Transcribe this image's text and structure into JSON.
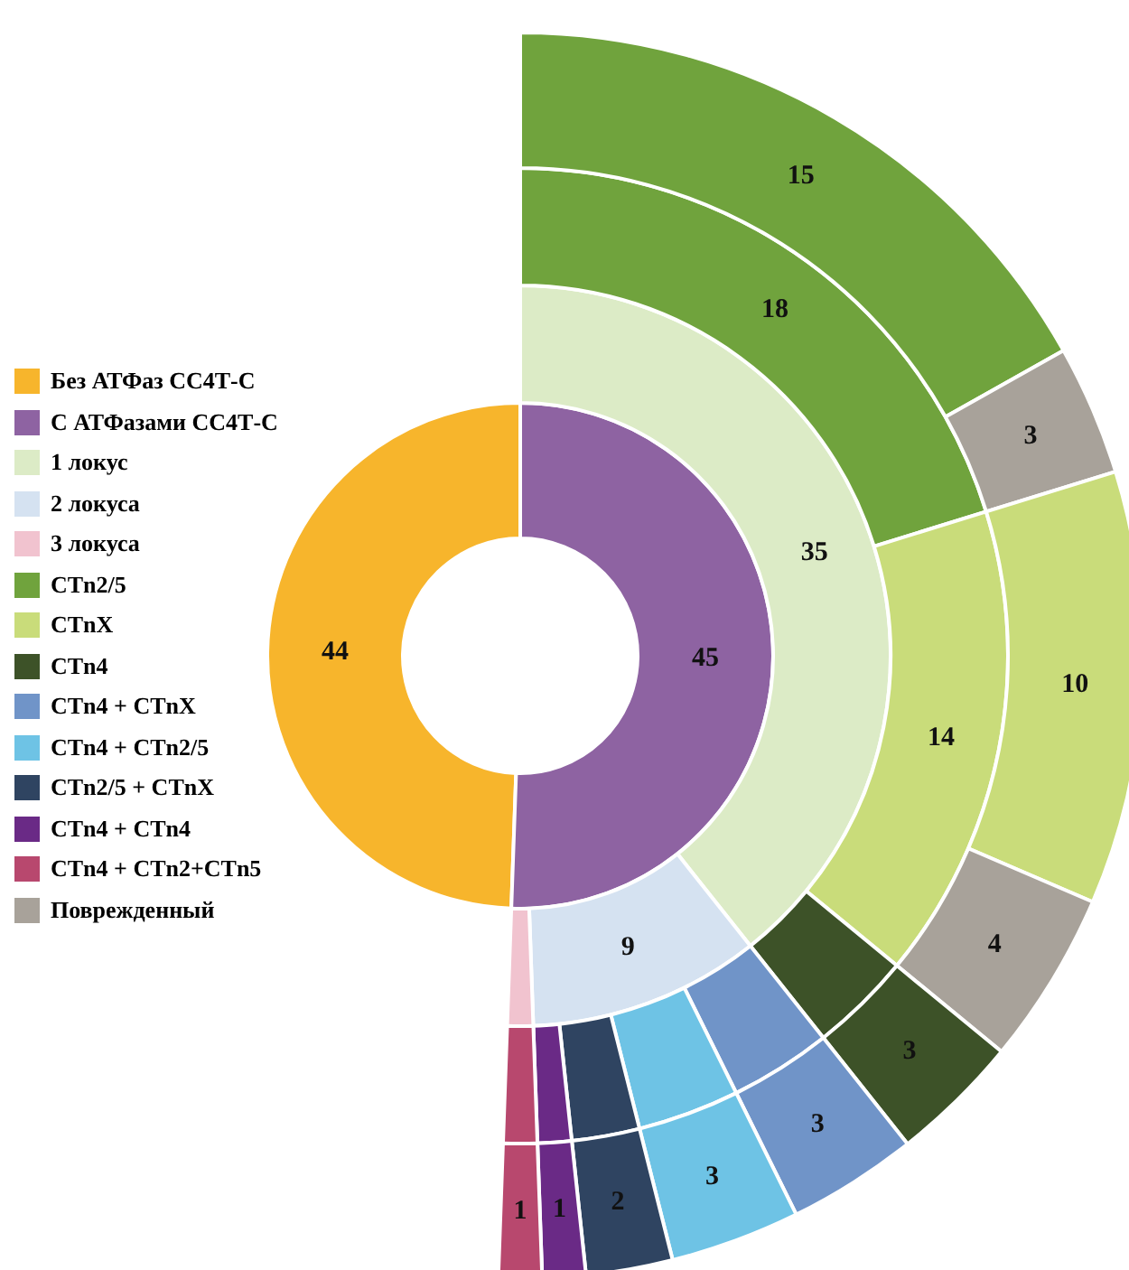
{
  "chart_data": [
    {
      "type": "donut",
      "legend": "left",
      "categories": [
        "Без АТФаз СС4Т-С",
        "С АТФазами СС4Т-С"
      ],
      "values": [
        44,
        45
      ],
      "colors": [
        "#f7b52c",
        "#8e63a2"
      ],
      "value_labels": [
        "44",
        "45"
      ]
    },
    {
      "type": "donut",
      "legend": "left",
      "categories": [
        "1 локус",
        "2 локуса",
        "3 локуса"
      ],
      "values": [
        35,
        9,
        1
      ],
      "colors": [
        "#dcebc6",
        "#d5e2f1",
        "#f1c3cf"
      ],
      "value_labels": [
        "35",
        "9",
        null
      ]
    },
    {
      "type": "donut",
      "categories": [
        null,
        null,
        null,
        null,
        null,
        null,
        null,
        null
      ],
      "values": [
        18,
        14,
        3,
        3,
        3,
        2,
        1,
        1
      ],
      "colors": [
        "#70a33d",
        "#c9dc7a",
        "#3d5228",
        "#7094c8",
        "#6ec3e5",
        "#2f4461",
        "#6a2a86",
        "#b8486e"
      ],
      "value_labels": [
        "18",
        "14",
        null,
        null,
        null,
        null,
        null,
        null
      ]
    },
    {
      "type": "donut",
      "legend": "left",
      "categories": [
        "CTn2/5",
        "Поврежденный",
        "CTnX",
        null,
        "CTn4",
        "CTn4 + CTnX",
        "CTn4 + CTn2/5",
        "CTn2/5 + CTnX",
        "CTn4 + CTn4",
        "CTn4 + CTn2+CTn5"
      ],
      "values": [
        15,
        3,
        10,
        4,
        3,
        3,
        3,
        2,
        1,
        1
      ],
      "colors": [
        "#70a33d",
        "#a8a29a",
        "#c9dc7a",
        "#a8a29a",
        "#3d5228",
        "#7094c8",
        "#6ec3e5",
        "#2f4461",
        "#6a2a86",
        "#b8486e"
      ],
      "value_labels": [
        "15",
        "3",
        "10",
        "4",
        "3",
        "3",
        "3",
        "2",
        "1",
        "1"
      ]
    }
  ]
}
